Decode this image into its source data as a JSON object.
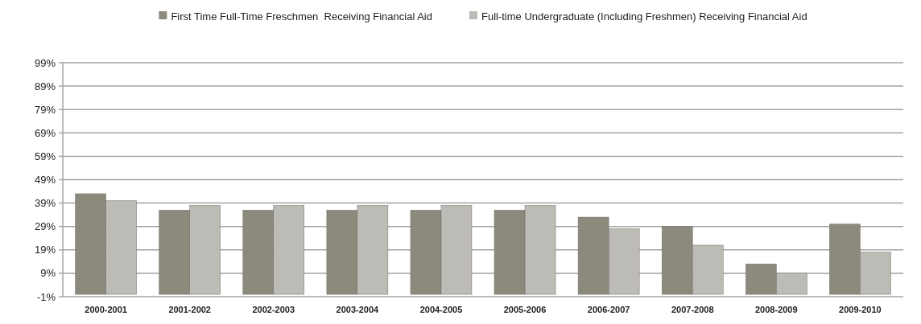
{
  "chart_data": {
    "type": "bar",
    "categories": [
      "2000-2001",
      "2001-2002",
      "2002-2003",
      "2003-2004",
      "2004-2005",
      "2005-2006",
      "2006-2007",
      "2007-2008",
      "2008-2009",
      "2009-2010"
    ],
    "series": [
      {
        "name": "First Time Full-Time Freschmen  Receiving Financial Aid",
        "color": "#8c8a7d",
        "values": [
          43,
          36,
          36,
          36,
          36,
          36,
          33,
          29,
          13,
          30
        ]
      },
      {
        "name": "Full-time Undergraduate (Including Freshmen) Receiving Financial Aid",
        "color": "#bdbbb6",
        "values": [
          40,
          38,
          38,
          38,
          38,
          38,
          28,
          21,
          9,
          18
        ]
      }
    ],
    "ylim": [
      -1,
      99
    ],
    "yticks": [
      {
        "value": -1,
        "label": "-1%"
      },
      {
        "value": 9,
        "label": "9%"
      },
      {
        "value": 19,
        "label": "19%"
      },
      {
        "value": 29,
        "label": "29%"
      },
      {
        "value": 39,
        "label": "39%"
      },
      {
        "value": 49,
        "label": "49%"
      },
      {
        "value": 59,
        "label": "59%"
      },
      {
        "value": 69,
        "label": "69%"
      },
      {
        "value": 79,
        "label": "79%"
      },
      {
        "value": 89,
        "label": "89%"
      },
      {
        "value": 99,
        "label": "99%"
      }
    ],
    "grid": "y",
    "legend": "top"
  }
}
